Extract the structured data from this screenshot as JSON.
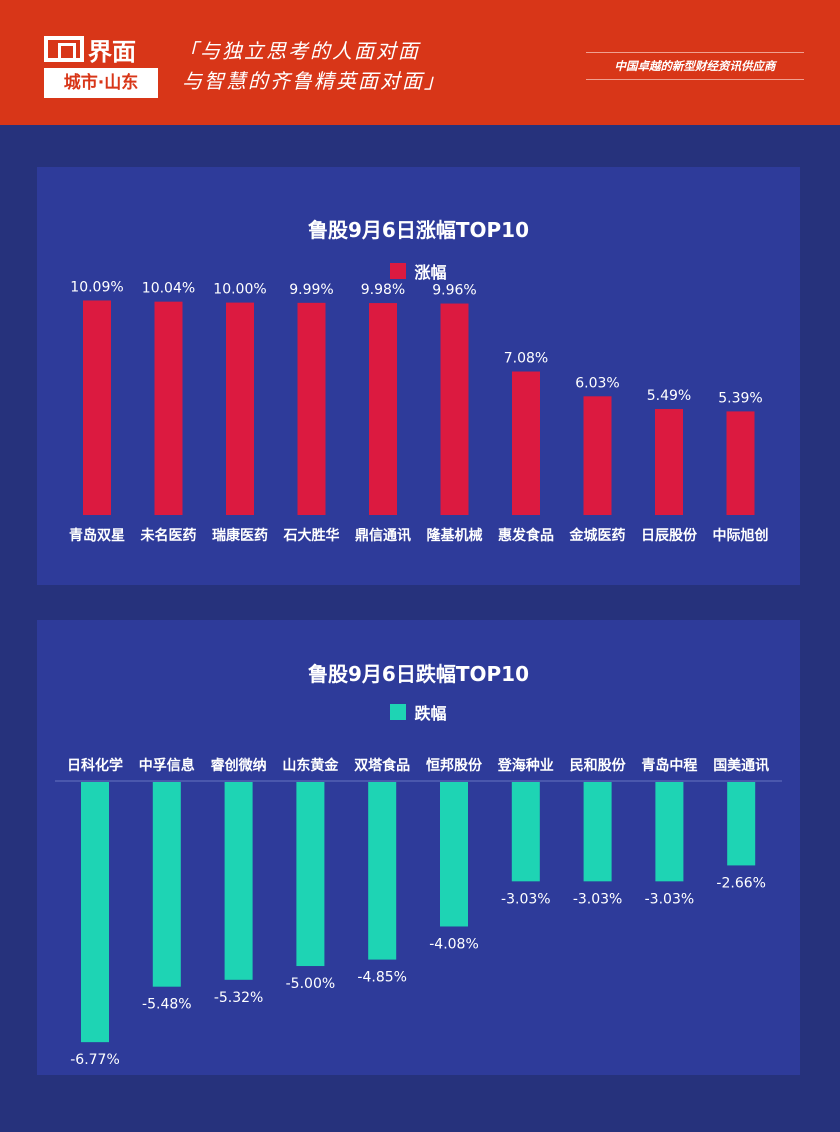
{
  "header": {
    "logo_name": "界面",
    "logo_city": "城市·山东",
    "slogan_line1": "「与独立思考的人面对面",
    "slogan_line2": "与智慧的齐鲁精英面对面」",
    "tagline": "中国卓越的新型财经资讯供应商"
  },
  "colors": {
    "header": "#d83618",
    "rise": "#dc1a40",
    "fall": "#1ed4b4",
    "panel": "#2e3b9a"
  },
  "chart_data": [
    {
      "type": "bar",
      "title": "鲁股9月6日涨幅TOP10",
      "legend": "涨幅",
      "categories": [
        "青岛双星",
        "未名医药",
        "瑞康医药",
        "石大胜华",
        "鼎信通讯",
        "隆基机械",
        "惠发食品",
        "金城医药",
        "日辰股份",
        "中际旭创"
      ],
      "values": [
        10.09,
        10.04,
        10.0,
        9.99,
        9.98,
        9.96,
        7.08,
        6.03,
        5.49,
        5.39
      ],
      "labels": [
        "10.09%",
        "10.04%",
        "10.00%",
        "9.99%",
        "9.98%",
        "9.96%",
        "7.08%",
        "6.03%",
        "5.49%",
        "5.39%"
      ],
      "ylim": [
        1,
        11
      ]
    },
    {
      "type": "bar",
      "title": "鲁股9月6日跌幅TOP10",
      "legend": "跌幅",
      "categories": [
        "日科化学",
        "中孚信息",
        "睿创微纳",
        "山东黄金",
        "双塔食品",
        "恒邦股份",
        "登海种业",
        "民和股份",
        "青岛中程",
        "国美通讯"
      ],
      "values": [
        -6.77,
        -5.48,
        -5.32,
        -5.0,
        -4.85,
        -4.08,
        -3.03,
        -3.03,
        -3.03,
        -2.66
      ],
      "labels": [
        "-6.77%",
        "-5.48%",
        "-5.32%",
        "-5.00%",
        "-4.85%",
        "-4.08%",
        "-3.03%",
        "-3.03%",
        "-3.03%",
        "-2.66%"
      ],
      "ylim": [
        -7,
        -0.72
      ]
    }
  ]
}
